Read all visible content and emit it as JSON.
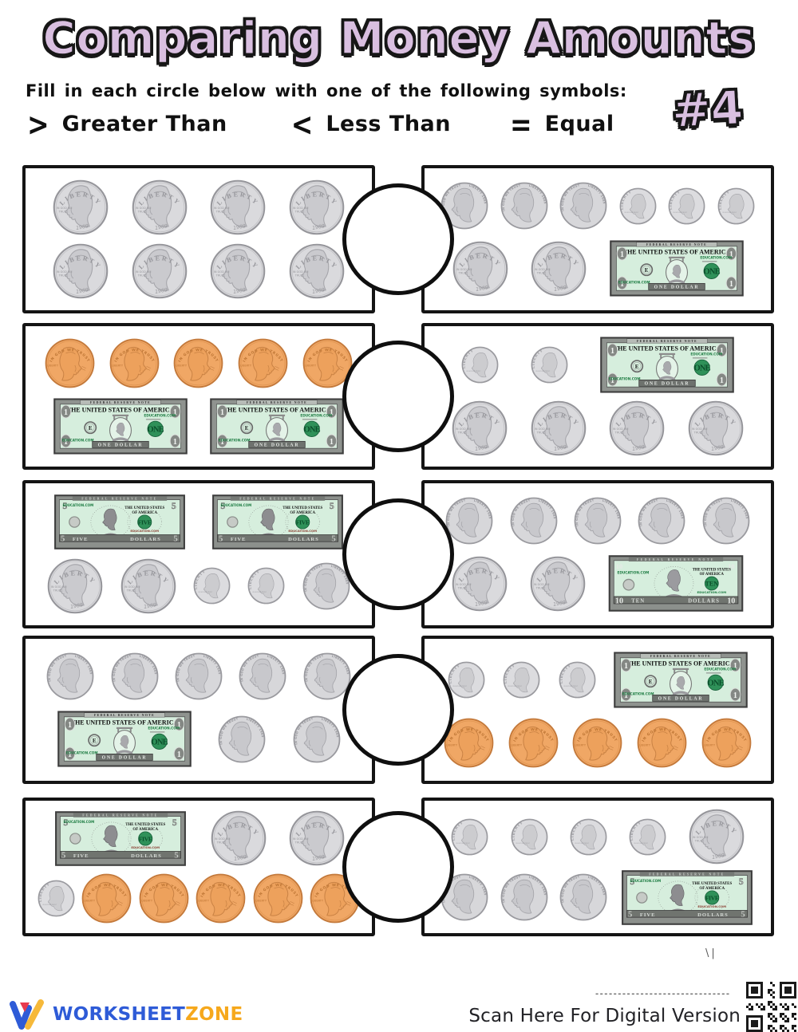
{
  "header": {
    "title": "Comparing Money Amounts",
    "instruction": "Fill in each circle below with one of the following symbols:",
    "greater_symbol": ">",
    "greater_label": "Greater Than",
    "less_symbol": "<",
    "less_label": "Less Than",
    "equal_symbol": "=",
    "equal_label": "Equal",
    "sheet_number": "#4"
  },
  "money": {
    "quarter": {
      "top": "LIBERTY",
      "motto1": "IN GOD WE",
      "motto2": "TRUST",
      "date": "1989"
    },
    "nickel": {
      "motto": "IN GOD WE TRUST",
      "liberty_date": "LIBERTY 1989"
    },
    "dime": {
      "liberty": "LIBERTY",
      "motto": "IN GOD WE TRUST"
    },
    "penny": {
      "motto": "IN GOD WE TRUST",
      "liberty": "LIBERTY"
    },
    "bill_one": {
      "type_label": "FEDERAL RESERVE NOTE",
      "title": "THE UNITED STATES OF AMERICA",
      "brand": "EDUCATION.COM",
      "seal_letter": "E",
      "seal_word": "ONE",
      "denom_text": "ONE DOLLAR",
      "corner": "1"
    },
    "bill_five": {
      "top_label": "FEDERAL RESERVE NOTE",
      "brand": "EDUCATION.COM",
      "title1": "THE UNITED STATES",
      "title2": "OF AMERICA",
      "seal_word": "FIVE",
      "brand2": "EDUCATION.COM",
      "word_left": "FIVE",
      "word_right": "DOLLARS",
      "corner": "5"
    },
    "bill_ten": {
      "top_label": "FEDERAL RESERVE NOTE",
      "brand": "EDUCATION.COM",
      "title1": "THE UNITED STATES",
      "title2": "OF AMERICA",
      "seal_word": "TEN",
      "brand2": "EDUCATION.COM",
      "word_left": "TEN",
      "word_right": "DOLLARS",
      "corner": "10"
    }
  },
  "rows": [
    {
      "left": [
        [
          "quarter",
          "quarter",
          "quarter",
          "quarter"
        ],
        [
          "quarter",
          "quarter",
          "quarter",
          "quarter"
        ]
      ],
      "right": [
        [
          "nickel",
          "nickel",
          "nickel",
          "dime",
          "dime",
          "dime"
        ],
        [
          "quarter",
          "quarter",
          "bill1"
        ]
      ],
      "answer": ""
    },
    {
      "left": [
        [
          "penny",
          "penny",
          "penny",
          "penny",
          "penny"
        ],
        [
          "bill1",
          "bill1"
        ]
      ],
      "right": [
        [
          "dime",
          "dime",
          "bill1"
        ],
        [
          "quarter",
          "quarter",
          "quarter",
          "quarter"
        ]
      ],
      "answer": ""
    },
    {
      "left": [
        [
          "bill5",
          "bill5"
        ],
        [
          "quarter",
          "quarter",
          "dime",
          "dime",
          "nickel"
        ]
      ],
      "right": [
        [
          "nickel",
          "nickel",
          "nickel",
          "nickel",
          "nickel"
        ],
        [
          "quarter",
          "quarter",
          "bill10"
        ]
      ],
      "answer": ""
    },
    {
      "left": [
        [
          "nickel",
          "nickel",
          "nickel",
          "nickel",
          "nickel"
        ],
        [
          "bill1",
          "nickel",
          "nickel"
        ]
      ],
      "right": [
        [
          "dime",
          "dime",
          "dime",
          "bill1"
        ],
        [
          "penny",
          "penny",
          "penny",
          "penny",
          "penny"
        ]
      ],
      "answer": ""
    },
    {
      "left": [
        [
          "bill5",
          "quarter",
          "quarter"
        ],
        [
          "dime",
          "penny",
          "penny",
          "penny",
          "penny",
          "penny"
        ]
      ],
      "right": [
        [
          "dime",
          "dime",
          "dime",
          "dime",
          "quarter"
        ],
        [
          "nickel",
          "nickel",
          "nickel",
          "bill5"
        ]
      ],
      "answer": ""
    }
  ],
  "footer": {
    "logo_word1": "WORKSHEET",
    "logo_word2": "ZONE",
    "masked_url": "------------------------------",
    "scan_text": "Scan Here For Digital Version",
    "stray_mark": "\\|"
  }
}
